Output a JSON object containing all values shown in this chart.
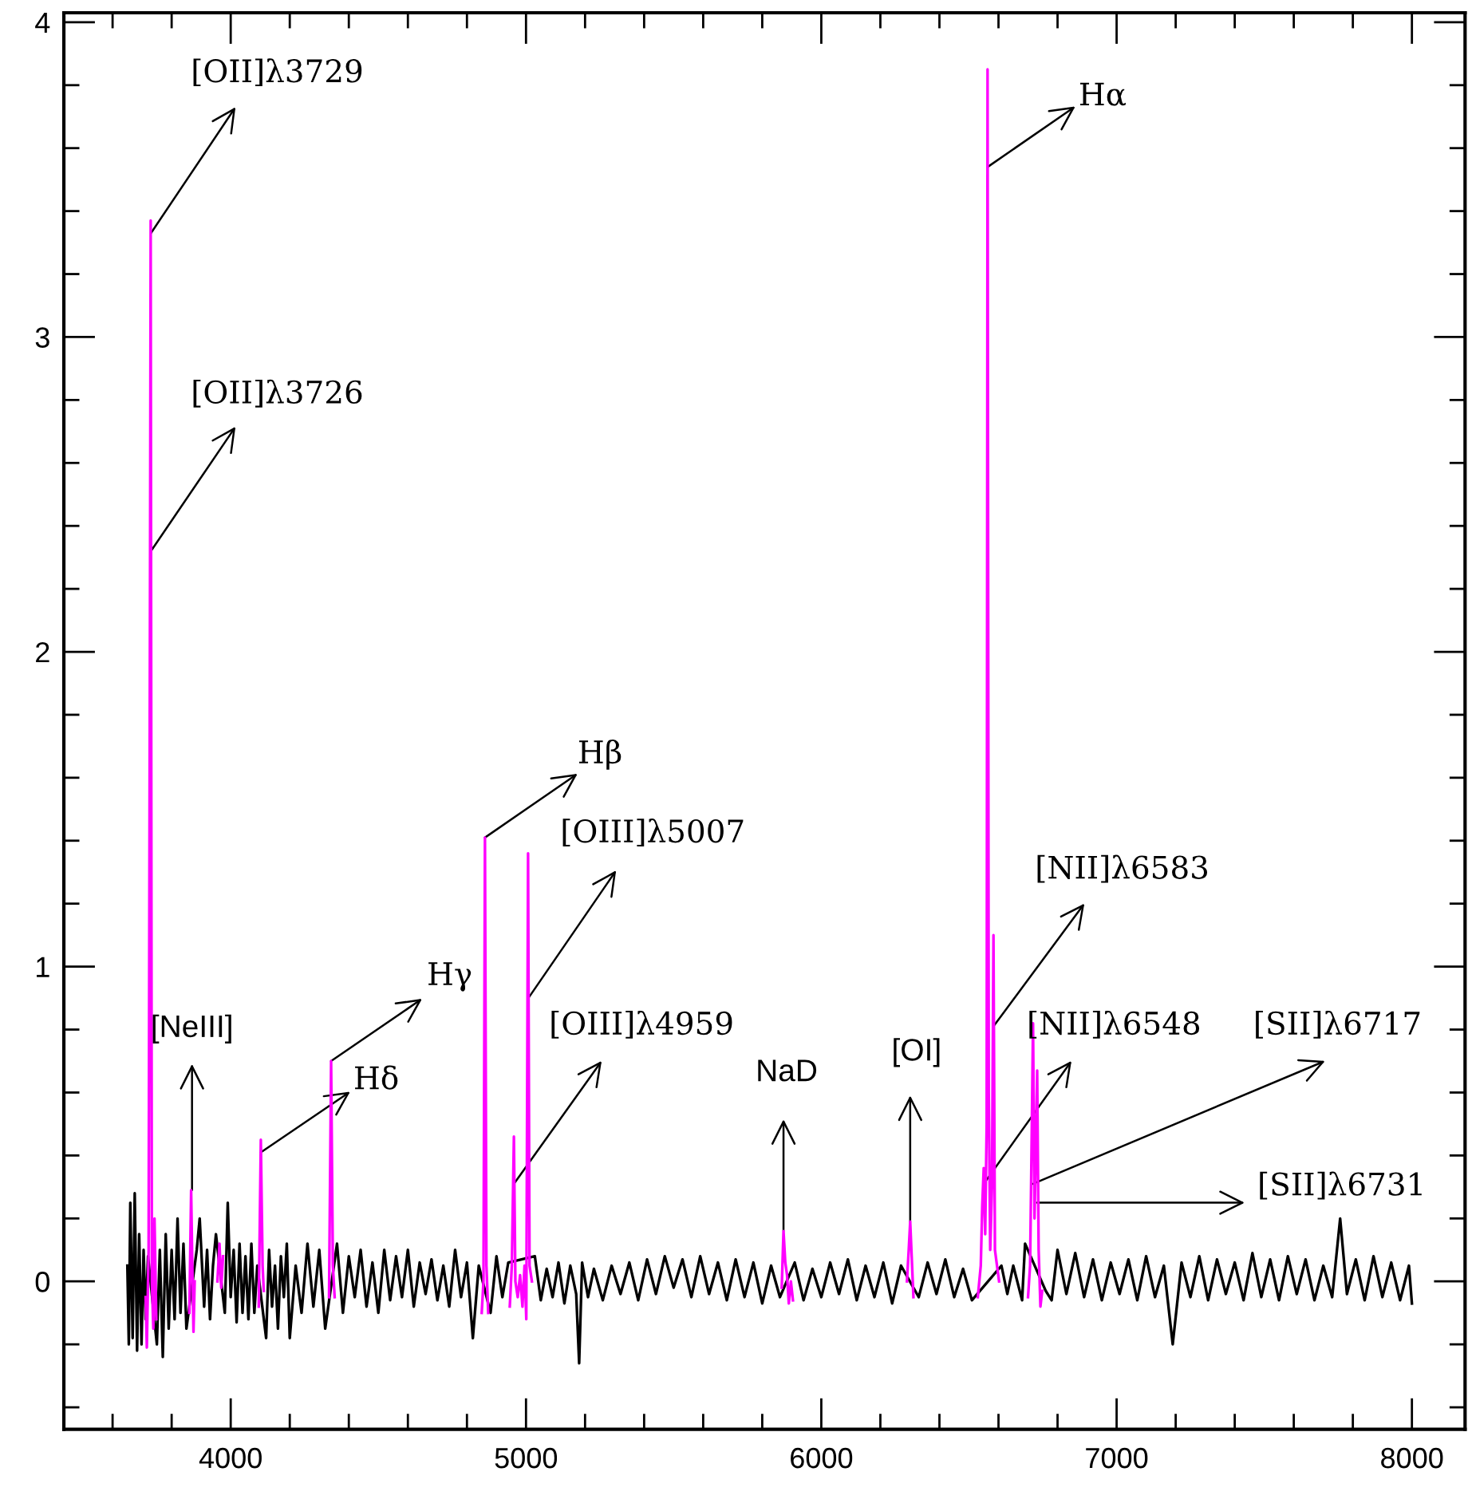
{
  "chart_data": {
    "type": "line",
    "xlim": [
      3435,
      8180
    ],
    "ylim": [
      -0.47,
      4.03
    ],
    "xticks": [
      {
        "value": 3600,
        "label": null
      },
      {
        "value": 3800,
        "label": null
      },
      4000,
      {
        "value": 4200,
        "label": null
      },
      {
        "value": 4400,
        "label": null
      },
      {
        "value": 4600,
        "label": null
      },
      {
        "value": 4800,
        "label": null
      },
      5000,
      {
        "value": 5200,
        "label": null
      },
      {
        "value": 5400,
        "label": null
      },
      {
        "value": 5600,
        "label": null
      },
      {
        "value": 5800,
        "label": null
      },
      6000,
      {
        "value": 6200,
        "label": null
      },
      {
        "value": 6400,
        "label": null
      },
      {
        "value": 6600,
        "label": null
      },
      {
        "value": 6800,
        "label": null
      },
      7000,
      {
        "value": 7200,
        "label": null
      },
      {
        "value": 7400,
        "label": null
      },
      {
        "value": 7600,
        "label": null
      },
      {
        "value": 7800,
        "label": null
      },
      8000
    ],
    "yticks": [
      {
        "value": -0.4,
        "label": null
      },
      {
        "value": -0.2,
        "label": null
      },
      0,
      {
        "value": 0.2,
        "label": null
      },
      {
        "value": 0.4,
        "label": null
      },
      {
        "value": 0.6,
        "label": null
      },
      {
        "value": 0.8,
        "label": null
      },
      1,
      {
        "value": 1.2,
        "label": null
      },
      {
        "value": 1.4,
        "label": null
      },
      {
        "value": 1.6,
        "label": null
      },
      {
        "value": 1.8,
        "label": null
      },
      2,
      {
        "value": 2.2,
        "label": null
      },
      {
        "value": 2.4,
        "label": null
      },
      {
        "value": 2.6,
        "label": null
      },
      {
        "value": 2.8,
        "label": null
      },
      3,
      {
        "value": 3.2,
        "label": null
      },
      {
        "value": 3.4,
        "label": null
      },
      {
        "value": 3.6,
        "label": null
      },
      {
        "value": 3.8,
        "label": null
      },
      4
    ],
    "grid": false,
    "series": [
      {
        "color": "#000000",
        "x": [
          3650,
          3655,
          3660,
          3668,
          3675,
          3683,
          3690,
          3698,
          3705,
          3712,
          3720,
          3750,
          3760,
          3770,
          3780,
          3790,
          3800,
          3810,
          3820,
          3830,
          3840,
          3850,
          3885,
          3895,
          3910,
          3920,
          3930,
          3940,
          3950,
          3980,
          3990,
          4000,
          4010,
          4020,
          4030,
          4040,
          4050,
          4060,
          4070,
          4080,
          4090,
          4120,
          4130,
          4140,
          4150,
          4160,
          4170,
          4180,
          4190,
          4200,
          4220,
          4240,
          4260,
          4280,
          4300,
          4320,
          4360,
          4380,
          4400,
          4420,
          4440,
          4460,
          4480,
          4500,
          4520,
          4540,
          4560,
          4580,
          4600,
          4620,
          4640,
          4660,
          4680,
          4700,
          4720,
          4740,
          4760,
          4780,
          4800,
          4820,
          4840,
          4880,
          4900,
          4920,
          4940,
          5030,
          5050,
          5070,
          5090,
          5110,
          5130,
          5150,
          5170,
          5180,
          5190,
          5210,
          5230,
          5260,
          5290,
          5320,
          5350,
          5380,
          5410,
          5440,
          5470,
          5500,
          5530,
          5560,
          5590,
          5620,
          5650,
          5680,
          5710,
          5740,
          5770,
          5800,
          5830,
          5860,
          5910,
          5940,
          5970,
          6000,
          6030,
          6060,
          6090,
          6120,
          6150,
          6180,
          6210,
          6240,
          6270,
          6330,
          6360,
          6390,
          6420,
          6450,
          6480,
          6510,
          6610,
          6630,
          6650,
          6680,
          6690,
          6760,
          6780,
          6800,
          6830,
          6860,
          6890,
          6920,
          6950,
          6980,
          7010,
          7040,
          7070,
          7100,
          7130,
          7160,
          7190,
          7220,
          7250,
          7280,
          7310,
          7340,
          7370,
          7400,
          7430,
          7460,
          7490,
          7520,
          7550,
          7580,
          7610,
          7640,
          7670,
          7700,
          7730,
          7757,
          7780,
          7810,
          7840,
          7870,
          7900,
          7930,
          7960,
          7990,
          8000
        ],
        "values": [
          0.05,
          -0.2,
          0.25,
          -0.18,
          0.28,
          -0.22,
          0.15,
          -0.2,
          0.1,
          -0.12,
          0.08,
          -0.2,
          0.1,
          -0.24,
          0.15,
          -0.15,
          0.1,
          -0.12,
          0.2,
          -0.1,
          0.12,
          -0.15,
          0.1,
          0.2,
          -0.08,
          0.1,
          -0.12,
          0.05,
          0.15,
          -0.1,
          0.25,
          -0.05,
          0.1,
          -0.13,
          0.12,
          -0.1,
          0.08,
          -0.12,
          0.12,
          -0.1,
          0.05,
          -0.18,
          0.1,
          -0.08,
          0.05,
          -0.15,
          0.08,
          -0.05,
          0.12,
          -0.18,
          0.05,
          -0.1,
          0.12,
          -0.08,
          0.1,
          -0.15,
          0.12,
          -0.1,
          0.08,
          -0.05,
          0.1,
          -0.08,
          0.06,
          -0.1,
          0.1,
          -0.06,
          0.08,
          -0.05,
          0.1,
          -0.08,
          0.06,
          -0.04,
          0.07,
          -0.06,
          0.05,
          -0.08,
          0.1,
          -0.05,
          0.06,
          -0.18,
          0.05,
          -0.1,
          0.08,
          -0.05,
          0.06,
          0.08,
          -0.06,
          0.04,
          -0.05,
          0.06,
          -0.07,
          0.05,
          -0.04,
          -0.26,
          0.06,
          -0.05,
          0.04,
          -0.06,
          0.05,
          -0.04,
          0.06,
          -0.06,
          0.07,
          -0.04,
          0.08,
          -0.02,
          0.07,
          -0.05,
          0.08,
          -0.04,
          0.06,
          -0.06,
          0.07,
          -0.05,
          0.06,
          -0.07,
          0.05,
          -0.05,
          0.06,
          -0.06,
          0.04,
          -0.05,
          0.06,
          -0.04,
          0.07,
          -0.06,
          0.05,
          -0.05,
          0.06,
          -0.07,
          0.05,
          -0.05,
          0.06,
          -0.04,
          0.07,
          -0.05,
          0.04,
          -0.06,
          0.05,
          -0.04,
          0.05,
          -0.06,
          0.12,
          -0.03,
          -0.06,
          0.1,
          -0.04,
          0.09,
          -0.05,
          0.07,
          -0.06,
          0.06,
          -0.04,
          0.07,
          -0.06,
          0.08,
          -0.05,
          0.05,
          -0.2,
          0.06,
          -0.05,
          0.08,
          -0.06,
          0.07,
          -0.04,
          0.06,
          -0.06,
          0.09,
          -0.05,
          0.07,
          -0.06,
          0.08,
          -0.04,
          0.07,
          -0.06,
          0.05,
          -0.05,
          0.2,
          -0.04,
          0.07,
          -0.06,
          0.08,
          -0.05,
          0.06,
          -0.06,
          0.05,
          -0.07
        ]
      },
      {
        "color": "#ff00ff",
        "x": [
          3712,
          3716,
          3722,
          3727,
          3729,
          3733,
          3738,
          3742,
          3748,
          3750,
          3860,
          3866,
          3870,
          3874,
          3878,
          3880,
          3955,
          3962,
          3968,
          3974,
          3976,
          4095,
          4102,
          4108,
          4112,
          4115,
          4333,
          4340,
          4346,
          4352,
          4355,
          4850,
          4856,
          4861,
          4866,
          4872,
          4875,
          4945,
          4952,
          4959,
          4964,
          4972,
          4980,
          4988,
          4995,
          5001,
          5007,
          5012,
          5020,
          5022,
          5866,
          5872,
          5878,
          5884,
          5890,
          5897,
          5904,
          5906,
          6290,
          6296,
          6301,
          6306,
          6312,
          6315,
          6530,
          6540,
          6545,
          6550,
          6555,
          6560,
          6563,
          6567,
          6572,
          6578,
          6583,
          6588,
          6595,
          6602,
          6605,
          6700,
          6707,
          6713,
          6717,
          6722,
          6727,
          6731,
          6736,
          6742,
          6748
        ],
        "values": [
          -0.05,
          -0.21,
          0.1,
          2.32,
          3.37,
          0.0,
          -0.15,
          0.2,
          -0.12,
          null,
          -0.1,
          0.29,
          0.05,
          -0.16,
          0.0,
          null,
          0.0,
          0.12,
          -0.02,
          0.08,
          null,
          -0.08,
          0.45,
          0.05,
          -0.03,
          null,
          -0.05,
          0.7,
          0.05,
          -0.05,
          null,
          -0.1,
          0.0,
          1.41,
          0.05,
          -0.1,
          null,
          -0.08,
          0.05,
          0.46,
          0.0,
          -0.05,
          0.02,
          -0.08,
          0.05,
          -0.12,
          1.36,
          0.05,
          0.0,
          null,
          -0.02,
          0.16,
          0.06,
          0.02,
          -0.07,
          0.0,
          -0.06,
          null,
          0.0,
          0.1,
          0.19,
          0.08,
          -0.05,
          null,
          -0.05,
          0.05,
          0.24,
          0.36,
          0.15,
          0.5,
          3.85,
          0.6,
          0.1,
          0.3,
          1.1,
          0.1,
          0.05,
          0.0,
          null,
          -0.05,
          0.05,
          0.5,
          0.82,
          0.2,
          0.45,
          0.67,
          0.1,
          -0.08,
          -0.03
        ]
      }
    ],
    "annotations": [
      {
        "text": "[OII]λ3729",
        "x": 3730,
        "y": 3.33
      },
      {
        "text": "[OII]λ3726",
        "x": 3730,
        "y": 2.32
      },
      {
        "text": "[NeIII]",
        "x": 3869,
        "y": 0.29
      },
      {
        "text": "Hδ",
        "x": 4102,
        "y": 0.41
      },
      {
        "text": "Hγ",
        "x": 4340,
        "y": 0.7
      },
      {
        "text": "Hβ",
        "x": 4861,
        "y": 1.41
      },
      {
        "text": "[OIII]λ5007",
        "x": 5008,
        "y": 0.9
      },
      {
        "text": "[OIII]λ4959",
        "x": 4959,
        "y": 0.31
      },
      {
        "text": "NaD",
        "x": 5872,
        "y": 0.16
      },
      {
        "text": "[OI]",
        "x": 6301,
        "y": 0.19
      },
      {
        "text": "[NII]λ6548",
        "x": 6550,
        "y": 0.31
      },
      {
        "text": "Hα",
        "x": 6563,
        "y": 3.54
      },
      {
        "text": "[NII]λ6583",
        "x": 6583,
        "y": 0.81
      },
      {
        "text": "[SII]λ6717",
        "x": 6717,
        "y": 0.31
      },
      {
        "text": "[SII]λ6731",
        "x": 6731,
        "y": 0.25
      }
    ]
  }
}
